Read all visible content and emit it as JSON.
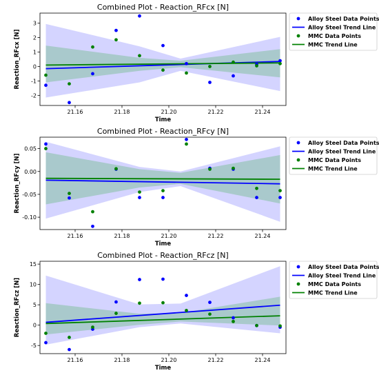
{
  "chart_data": [
    {
      "type": "scatter",
      "title": "Combined Plot - Reaction_RFcx [N]",
      "xlabel": "Time",
      "ylabel": "Reaction_RFcx [N]",
      "xlim": [
        21.145,
        21.25
      ],
      "ylim": [
        -2.7,
        3.7
      ],
      "xticks": [
        21.16,
        21.18,
        21.2,
        21.22,
        21.24
      ],
      "xtick_labels": [
        "21.16",
        "21.18",
        "21.20",
        "21.22",
        "21.24"
      ],
      "yticks": [
        -2,
        -1,
        0,
        1,
        2,
        3
      ],
      "ytick_labels": [
        "-2",
        "-1",
        "0",
        "1",
        "2",
        "3"
      ],
      "grid": false,
      "legend_position": "outside-right",
      "series": [
        {
          "name": "Alloy Steel Data Points",
          "kind": "points",
          "color": "#0000ff",
          "x": [
            21.1475,
            21.1575,
            21.1675,
            21.1775,
            21.1875,
            21.1975,
            21.2075,
            21.2175,
            21.2275,
            21.2375,
            21.2475
          ],
          "y": [
            -1.3,
            -2.5,
            -0.5,
            2.5,
            3.5,
            1.45,
            0.2,
            -1.1,
            -0.65,
            0.15,
            0.4
          ]
        },
        {
          "name": "Alloy Steel Trend Line",
          "kind": "line",
          "color": "#0000ff",
          "x": [
            21.1475,
            21.2475
          ],
          "y": [
            -0.15,
            0.35
          ],
          "band_lower": [
            -2.15,
            -1.1,
            -0.3,
            -1.7
          ],
          "band_upper": [
            2.95,
            1.4,
            0.55,
            2.05
          ],
          "band_x": [
            21.1475,
            21.1875,
            21.205,
            21.2475
          ]
        },
        {
          "name": "MMC Data Points",
          "kind": "points",
          "color": "#008000",
          "x": [
            21.1475,
            21.1575,
            21.1675,
            21.1775,
            21.1875,
            21.1975,
            21.2075,
            21.2175,
            21.2275,
            21.2375,
            21.2475
          ],
          "y": [
            -0.6,
            -1.2,
            1.35,
            1.85,
            0.75,
            -0.25,
            -0.45,
            0.0,
            0.3,
            0.05,
            0.2
          ]
        },
        {
          "name": "MMC Trend Line",
          "kind": "line",
          "color": "#008000",
          "x": [
            21.1475,
            21.2475
          ],
          "y": [
            0.1,
            0.25
          ],
          "band_lower": [
            -1.1,
            -0.3,
            -0.05,
            -0.75
          ],
          "band_upper": [
            1.45,
            0.6,
            0.4,
            1.2
          ],
          "band_x": [
            21.1475,
            21.1875,
            21.205,
            21.2475
          ]
        }
      ]
    },
    {
      "type": "scatter",
      "title": "Combined Plot - Reaction_RFcy [N]",
      "xlabel": "Time",
      "ylabel": "Reaction_RFcy [N]",
      "xlim": [
        21.145,
        21.25
      ],
      "ylim": [
        -0.127,
        0.075
      ],
      "xticks": [
        21.16,
        21.18,
        21.2,
        21.22,
        21.24
      ],
      "xtick_labels": [
        "21.16",
        "21.18",
        "21.20",
        "21.22",
        "21.24"
      ],
      "yticks": [
        -0.1,
        -0.05,
        0.0,
        0.05
      ],
      "ytick_labels": [
        "-0.10",
        "-0.05",
        "0.00",
        "0.05"
      ],
      "grid": false,
      "legend_position": "outside-right",
      "series": [
        {
          "name": "Alloy Steel Data Points",
          "kind": "points",
          "color": "#0000ff",
          "x": [
            21.1475,
            21.1575,
            21.1675,
            21.1775,
            21.1875,
            21.1975,
            21.2075,
            21.2175,
            21.2275,
            21.2375,
            21.2475
          ],
          "y": [
            0.06,
            -0.058,
            -0.12,
            0.005,
            -0.057,
            -0.057,
            0.07,
            0.007,
            0.005,
            -0.057,
            -0.057
          ]
        },
        {
          "name": "Alloy Steel Trend Line",
          "kind": "line",
          "color": "#0000ff",
          "x": [
            21.1475,
            21.2475
          ],
          "y": [
            -0.019,
            -0.027
          ],
          "band_lower": [
            -0.103,
            -0.045,
            -0.032,
            -0.11
          ],
          "band_upper": [
            0.065,
            0.01,
            0.0,
            0.055
          ],
          "band_x": [
            21.1475,
            21.1875,
            21.205,
            21.2475
          ]
        },
        {
          "name": "MMC Data Points",
          "kind": "points",
          "color": "#008000",
          "x": [
            21.1475,
            21.1575,
            21.1675,
            21.1775,
            21.1875,
            21.1975,
            21.2075,
            21.2175,
            21.2275,
            21.2375,
            21.2475
          ],
          "y": [
            0.05,
            -0.048,
            -0.088,
            0.006,
            -0.045,
            -0.042,
            0.06,
            0.005,
            0.007,
            -0.037,
            -0.042
          ]
        },
        {
          "name": "MMC Trend Line",
          "kind": "line",
          "color": "#008000",
          "x": [
            21.1475,
            21.2475
          ],
          "y": [
            -0.015,
            -0.017
          ],
          "band_lower": [
            -0.072,
            -0.035,
            -0.027,
            -0.07
          ],
          "band_upper": [
            0.042,
            0.005,
            -0.003,
            0.036
          ],
          "band_x": [
            21.1475,
            21.1875,
            21.205,
            21.2475
          ]
        }
      ]
    },
    {
      "type": "scatter",
      "title": "Combined Plot - Reaction_RFcz [N]",
      "xlabel": "Time",
      "ylabel": "Reaction_RFcz [N]",
      "xlim": [
        21.145,
        21.25
      ],
      "ylim": [
        -7.0,
        15.7
      ],
      "xticks": [
        21.16,
        21.18,
        21.2,
        21.22,
        21.24
      ],
      "xtick_labels": [
        "21.16",
        "21.18",
        "21.20",
        "21.22",
        "21.24"
      ],
      "yticks": [
        -5,
        0,
        5,
        10,
        15
      ],
      "ytick_labels": [
        "-5",
        "0",
        "5",
        "10",
        "15"
      ],
      "grid": false,
      "legend_position": "outside-right",
      "series": [
        {
          "name": "Alloy Steel Data Points",
          "kind": "points",
          "color": "#0000ff",
          "x": [
            21.1475,
            21.1575,
            21.1675,
            21.1775,
            21.1875,
            21.1975,
            21.2075,
            21.2175,
            21.2275,
            21.2375,
            21.2475
          ],
          "y": [
            -4.3,
            -6.0,
            -1.0,
            5.7,
            11.2,
            11.3,
            7.3,
            5.6,
            1.8,
            -0.1,
            -0.5
          ]
        },
        {
          "name": "Alloy Steel Trend Line",
          "kind": "line",
          "color": "#0000ff",
          "x": [
            21.1475,
            21.2475
          ],
          "y": [
            0.7,
            4.9
          ],
          "band_lower": [
            -4.8,
            -0.5,
            0.4,
            -2.0
          ],
          "band_upper": [
            12.2,
            5.1,
            5.3,
            14.5
          ],
          "band_x": [
            21.1475,
            21.1875,
            21.205,
            21.2475
          ]
        },
        {
          "name": "MMC Data Points",
          "kind": "points",
          "color": "#008000",
          "x": [
            21.1475,
            21.1575,
            21.1675,
            21.1775,
            21.1875,
            21.1975,
            21.2075,
            21.2175,
            21.2275,
            21.2375,
            21.2475
          ],
          "y": [
            -2.0,
            -3.0,
            -0.5,
            2.9,
            5.4,
            5.5,
            3.6,
            2.7,
            0.9,
            -0.1,
            -0.2
          ]
        },
        {
          "name": "MMC Trend Line",
          "kind": "line",
          "color": "#008000",
          "x": [
            21.1475,
            21.2475
          ],
          "y": [
            0.4,
            2.3
          ],
          "band_lower": [
            -2.3,
            0.1,
            0.9,
            -0.1
          ],
          "band_upper": [
            5.4,
            2.8,
            3.0,
            7.0
          ],
          "band_x": [
            21.1475,
            21.1875,
            21.205,
            21.2475
          ]
        }
      ]
    }
  ]
}
